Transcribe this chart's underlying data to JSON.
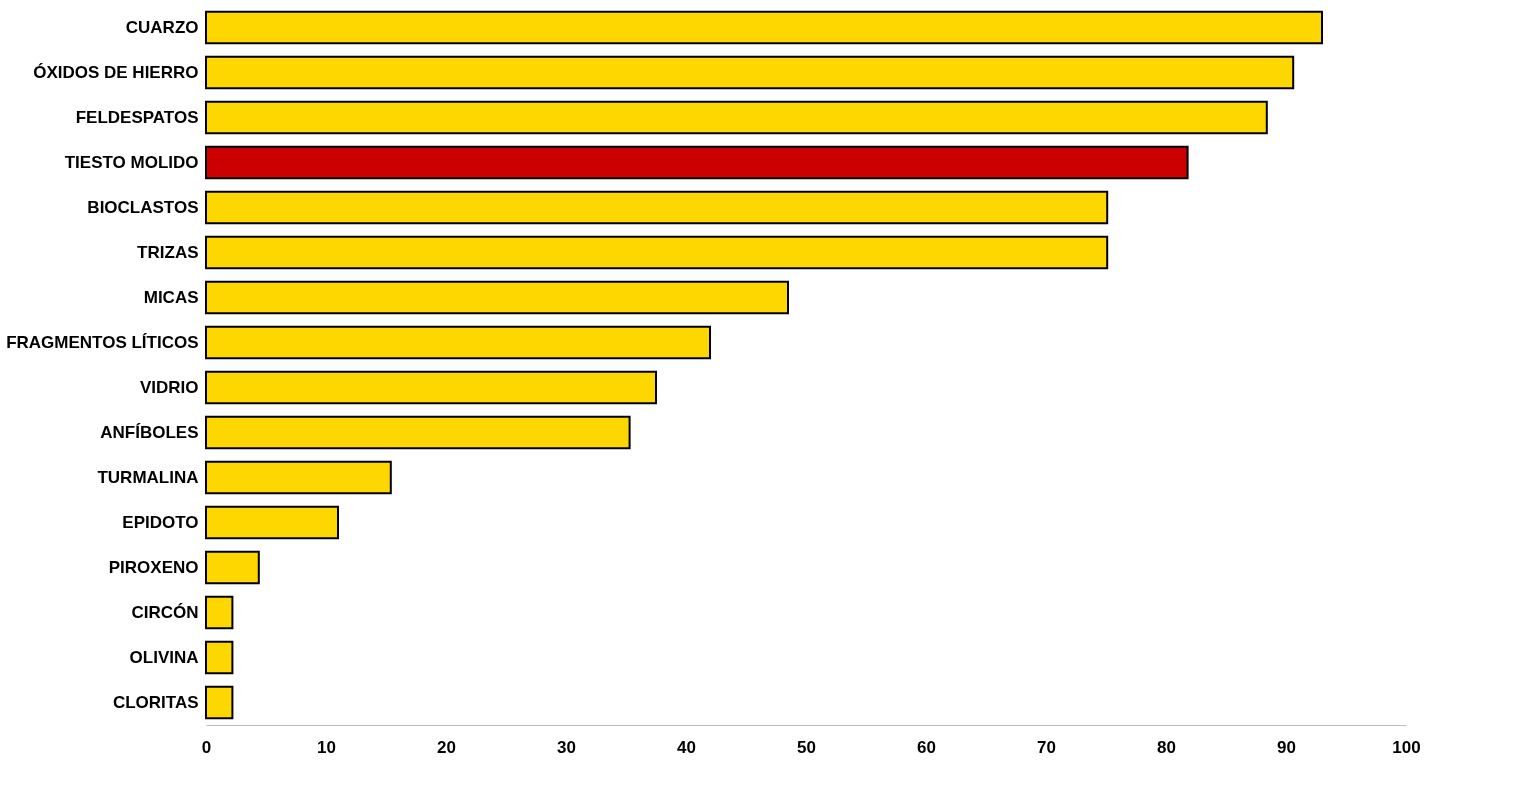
{
  "chart_data": {
    "type": "bar",
    "orientation": "horizontal",
    "categories": [
      "CUARZO",
      "ÓXIDOS DE HIERRO",
      "FELDESPATOS",
      "TIESTO MOLIDO",
      "BIOCLASTOS",
      "TRIZAS",
      "MICAS",
      "FRAGMENTOS LÍTICOS",
      "VIDRIO",
      "ANFÍBOLES",
      "TURMALINA",
      "EPIDOTO",
      "PIROXENO",
      "CIRCÓN",
      "OLIVINA",
      "CLORITAS"
    ],
    "values": [
      93,
      90.6,
      88.4,
      81.8,
      75.1,
      75.1,
      48.5,
      42,
      37.5,
      35.3,
      15.4,
      11,
      4.4,
      2.2,
      2.2,
      2.2
    ],
    "colors": [
      "#ffd700",
      "#ffd700",
      "#ffd700",
      "#cc0000",
      "#ffd700",
      "#ffd700",
      "#ffd700",
      "#ffd700",
      "#ffd700",
      "#ffd700",
      "#ffd700",
      "#ffd700",
      "#ffd700",
      "#ffd700",
      "#ffd700",
      "#ffd700"
    ],
    "xlim": [
      0,
      100
    ],
    "xticks": [
      0,
      10,
      20,
      30,
      40,
      50,
      60,
      70,
      80,
      90,
      100
    ],
    "grid": false
  }
}
